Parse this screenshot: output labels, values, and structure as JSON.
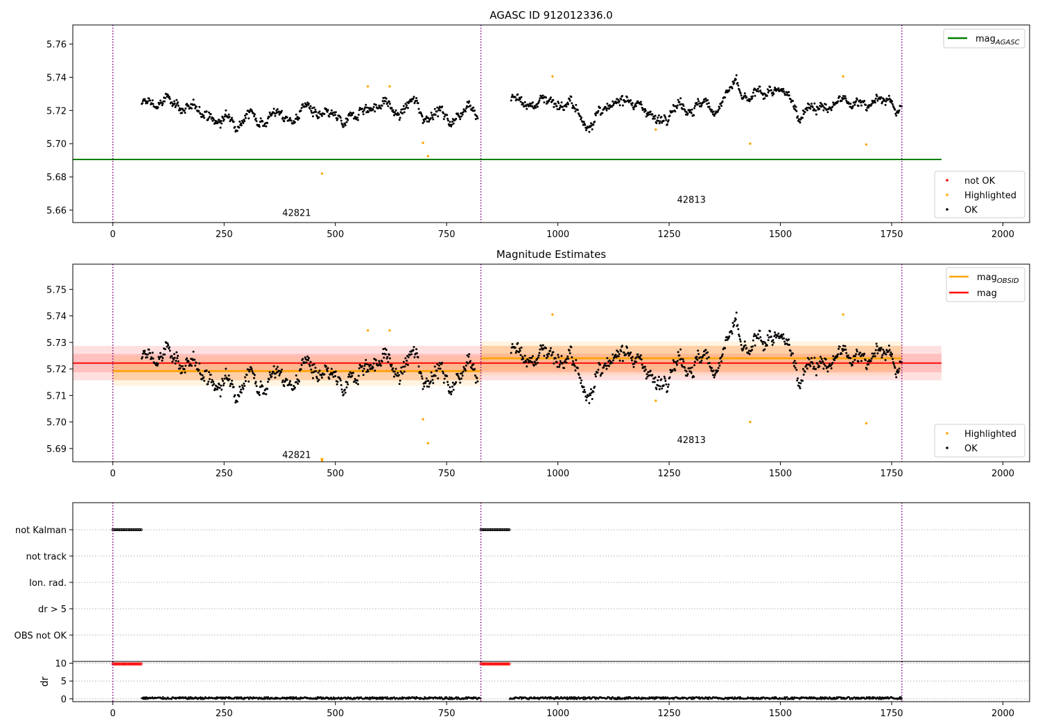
{
  "chart_data": [
    {
      "type": "scatter",
      "title": "AGASC ID 912012336.0",
      "xlabel": "",
      "ylabel": "",
      "xlim": [
        -90,
        2060
      ],
      "ylim": [
        5.6525,
        5.7715
      ],
      "xticks": [
        0,
        250,
        500,
        750,
        1000,
        1250,
        1500,
        1750,
        2000
      ],
      "yticks": [
        5.66,
        5.68,
        5.7,
        5.72,
        5.74,
        5.76
      ],
      "ytick_decimals": 2,
      "obsid_boundaries": [
        0,
        827,
        1773
      ],
      "obsid_labels": [
        {
          "text": "42821",
          "x": 413,
          "y": 5.6565
        },
        {
          "text": "42813",
          "x": 1300,
          "y": 5.6645
        }
      ],
      "reference_lines": [
        {
          "name": "mag",
          "subscript": "AGASC",
          "y": 5.6905,
          "x_range": [
            -90,
            1862
          ],
          "color": "#008000"
        }
      ],
      "series": [
        {
          "name": "not OK",
          "color": "#ff0000",
          "points": []
        },
        {
          "name": "Highlighted",
          "color": "#ffa500",
          "points": [
            [
              470,
              5.682
            ],
            [
              573,
              5.7345
            ],
            [
              622,
              5.7345
            ],
            [
              697,
              5.7005
            ],
            [
              708,
              5.6925
            ],
            [
              988,
              5.7405
            ],
            [
              1220,
              5.7085
            ],
            [
              1432,
              5.7
            ],
            [
              1641,
              5.7405
            ],
            [
              1693,
              5.6995
            ]
          ]
        },
        {
          "name": "OK",
          "color": "#000000",
          "segments": [
            {
              "x": [
                65,
                820
              ],
              "anchors": [
                [
                  65,
                  5.721
                ],
                [
                  80,
                  5.724
                ],
                [
                  100,
                  5.725
                ],
                [
                  120,
                  5.726
                ],
                [
                  140,
                  5.724
                ],
                [
                  160,
                  5.722
                ],
                [
                  180,
                  5.72
                ],
                [
                  200,
                  5.719
                ],
                [
                  220,
                  5.718
                ],
                [
                  240,
                  5.712
                ],
                [
                  260,
                  5.714
                ],
                [
                  280,
                  5.716
                ],
                [
                  300,
                  5.718
                ],
                [
                  320,
                  5.714
                ],
                [
                  340,
                  5.716
                ],
                [
                  360,
                  5.719
                ],
                [
                  380,
                  5.714
                ],
                [
                  400,
                  5.716
                ],
                [
                  420,
                  5.718
                ],
                [
                  440,
                  5.722
                ],
                [
                  460,
                  5.717
                ],
                [
                  480,
                  5.716
                ],
                [
                  500,
                  5.714
                ],
                [
                  520,
                  5.713
                ],
                [
                  540,
                  5.716
                ],
                [
                  560,
                  5.72
                ],
                [
                  580,
                  5.724
                ],
                [
                  600,
                  5.723
                ],
                [
                  620,
                  5.722
                ],
                [
                  640,
                  5.719
                ],
                [
                  660,
                  5.721
                ],
                [
                  680,
                  5.724
                ],
                [
                  700,
                  5.718
                ],
                [
                  720,
                  5.719
                ],
                [
                  740,
                  5.717
                ],
                [
                  760,
                  5.716
                ],
                [
                  780,
                  5.717
                ],
                [
                  800,
                  5.725
                ],
                [
                  820,
                  5.72
                ]
              ]
            },
            {
              "x": [
                895,
                1773
              ],
              "anchors": [
                [
                  895,
                  5.726
                ],
                [
                  920,
                  5.724
                ],
                [
                  950,
                  5.725
                ],
                [
                  980,
                  5.726
                ],
                [
                  1000,
                  5.727
                ],
                [
                  1020,
                  5.722
                ],
                [
                  1040,
                  5.72
                ],
                [
                  1060,
                  5.713
                ],
                [
                  1080,
                  5.714
                ],
                [
                  1100,
                  5.718
                ],
                [
                  1120,
                  5.722
                ],
                [
                  1140,
                  5.726
                ],
                [
                  1160,
                  5.728
                ],
                [
                  1180,
                  5.724
                ],
                [
                  1200,
                  5.72
                ],
                [
                  1220,
                  5.712
                ],
                [
                  1240,
                  5.72
                ],
                [
                  1260,
                  5.722
                ],
                [
                  1280,
                  5.723
                ],
                [
                  1300,
                  5.724
                ],
                [
                  1320,
                  5.722
                ],
                [
                  1340,
                  5.721
                ],
                [
                  1360,
                  5.724
                ],
                [
                  1380,
                  5.729
                ],
                [
                  1400,
                  5.735
                ],
                [
                  1420,
                  5.727
                ],
                [
                  1440,
                  5.726
                ],
                [
                  1460,
                  5.731
                ],
                [
                  1480,
                  5.734
                ],
                [
                  1500,
                  5.727
                ],
                [
                  1520,
                  5.729
                ],
                [
                  1540,
                  5.719
                ],
                [
                  1560,
                  5.721
                ],
                [
                  1580,
                  5.722
                ],
                [
                  1600,
                  5.723
                ],
                [
                  1620,
                  5.72
                ],
                [
                  1640,
                  5.726
                ],
                [
                  1660,
                  5.724
                ],
                [
                  1680,
                  5.726
                ],
                [
                  1700,
                  5.722
                ],
                [
                  1720,
                  5.728
                ],
                [
                  1740,
                  5.725
                ],
                [
                  1760,
                  5.72
                ],
                [
                  1773,
                  5.723
                ]
              ]
            }
          ]
        }
      ],
      "legend_top": {
        "position": "top-right",
        "entries": [
          {
            "label": "mag",
            "subscript": "AGASC",
            "color": "#008000"
          }
        ]
      },
      "legend_bottom": {
        "position": "lower-right",
        "entries": [
          {
            "label": "not OK",
            "color": "#ff0000"
          },
          {
            "label": "Highlighted",
            "color": "#ffa500"
          },
          {
            "label": "OK",
            "color": "#000000"
          }
        ]
      }
    },
    {
      "type": "scatter",
      "title": "Magnitude Estimates",
      "xlabel": "",
      "ylabel": "",
      "xlim": [
        -90,
        2060
      ],
      "ylim": [
        5.685,
        5.7595
      ],
      "xticks": [
        0,
        250,
        500,
        750,
        1000,
        1250,
        1500,
        1750,
        2000
      ],
      "yticks": [
        5.69,
        5.7,
        5.71,
        5.72,
        5.73,
        5.74,
        5.75
      ],
      "ytick_decimals": 2,
      "obsid_boundaries": [
        0,
        827,
        1773
      ],
      "obsid_labels": [
        {
          "text": "42821",
          "x": 413,
          "y": 5.6865
        },
        {
          "text": "42813",
          "x": 1300,
          "y": 5.692
        }
      ],
      "bands": [
        {
          "name": "mag",
          "x_range": [
            -90,
            1862
          ],
          "y": 5.7222,
          "inner": [
            5.7187,
            5.7257
          ],
          "outer": [
            5.7157,
            5.7287
          ],
          "color": "#ff0000"
        },
        {
          "name": "mag_OBSID 42821",
          "x_range": [
            0,
            827
          ],
          "y": 5.7192,
          "inner": [
            5.7158,
            5.7226
          ],
          "outer": [
            5.7136,
            5.7248
          ],
          "color": "#ffa500"
        },
        {
          "name": "mag_OBSID 42813",
          "x_range": [
            827,
            1773
          ],
          "y": 5.724,
          "inner": [
            5.7193,
            5.7287
          ],
          "outer": [
            5.7176,
            5.7304
          ],
          "color": "#ffa500"
        }
      ],
      "series": [
        {
          "name": "Highlighted",
          "color": "#ffa500",
          "points": [
            [
              470,
              5.6855
            ],
            [
              573,
              5.7345
            ],
            [
              622,
              5.7345
            ],
            [
              697,
              5.701
            ],
            [
              708,
              5.692
            ],
            [
              988,
              5.7405
            ],
            [
              1220,
              5.708
            ],
            [
              1432,
              5.7
            ],
            [
              1641,
              5.7405
            ],
            [
              1693,
              5.6995
            ]
          ]
        },
        {
          "name": "OK",
          "color": "#000000",
          "same_as_panel": 0
        }
      ],
      "legend_top": {
        "position": "top-right",
        "entries": [
          {
            "label": "mag",
            "subscript": "OBSID",
            "color": "#ffa500"
          },
          {
            "label": "mag",
            "color": "#ff0000"
          }
        ]
      },
      "legend_bottom": {
        "position": "lower-right",
        "entries": [
          {
            "label": "Highlighted",
            "color": "#ffa500"
          },
          {
            "label": "OK",
            "color": "#000000"
          }
        ]
      }
    },
    {
      "type": "scatter",
      "title": "",
      "xlabel": "",
      "ylabel": "",
      "xlim": [
        -90,
        2060
      ],
      "categories": [
        "not Kalman",
        "not track",
        "Ion. rad.",
        "dr > 5",
        "OBS not OK"
      ],
      "obsid_boundaries": [
        0,
        827,
        1773
      ],
      "flags": [
        {
          "category": "not Kalman",
          "x_ranges": [
            [
              0,
              65
            ],
            [
              827,
              892
            ]
          ]
        }
      ],
      "grid": "y-dotted"
    },
    {
      "type": "scatter",
      "title": "",
      "xlabel": "",
      "ylabel": "dr",
      "xlim": [
        -90,
        2060
      ],
      "ylim": [
        -0.8,
        10.5
      ],
      "xticks": [
        0,
        250,
        500,
        750,
        1000,
        1250,
        1500,
        1750,
        2000
      ],
      "yticks": [
        0,
        5,
        10
      ],
      "ytick_decimals": 0,
      "obsid_boundaries": [
        0,
        827,
        1773
      ],
      "series": [
        {
          "name": "not OK",
          "color": "#ff0000",
          "value": 9.8,
          "x_ranges": [
            [
              0,
              65
            ],
            [
              827,
              892
            ]
          ]
        },
        {
          "name": "OK",
          "color": "#000000",
          "value": 0.2,
          "x_ranges": [
            [
              65,
              827
            ],
            [
              892,
              1773
            ]
          ]
        }
      ],
      "grid": "y-dotted"
    }
  ]
}
